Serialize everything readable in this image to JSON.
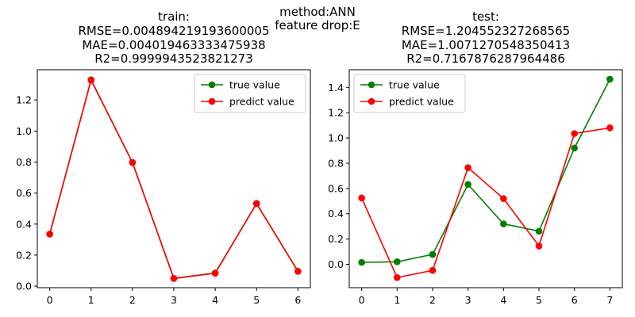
{
  "figure": {
    "suptitle_lines": [
      "method:ANN",
      "feature drop:E"
    ]
  },
  "chart_data": [
    {
      "type": "line",
      "title_lines": [
        "train:",
        "RMSE=0.004894219193600005",
        "MAE=0.004019463333475938",
        "R2=0.9999943523821273"
      ],
      "x": [
        0,
        1,
        2,
        3,
        4,
        5,
        6
      ],
      "series": [
        {
          "name": "true value",
          "color": "#008000",
          "values": [
            0.335,
            1.33,
            0.797,
            0.05,
            0.085,
            0.533,
            0.095
          ]
        },
        {
          "name": "predict value",
          "color": "#ff0000",
          "values": [
            0.336,
            1.328,
            0.797,
            0.049,
            0.083,
            0.532,
            0.096
          ]
        }
      ],
      "xlim": [
        -0.3,
        6.3
      ],
      "ylim": [
        -0.01,
        1.395
      ],
      "xticks": [
        0,
        1,
        2,
        3,
        4,
        5,
        6
      ],
      "yticks": [
        0.0,
        0.2,
        0.4,
        0.6,
        0.8,
        1.0,
        1.2
      ],
      "ytick_labels": [
        "0.0",
        "0.2",
        "0.4",
        "0.6",
        "0.8",
        "1.0",
        "1.2"
      ],
      "legend_loc": "top-right",
      "xlabel": "",
      "ylabel": ""
    },
    {
      "type": "line",
      "title_lines": [
        "test:",
        "RMSE=1.204552327268565",
        "MAE=1.0071270548350413",
        "R2=0.7167876287964486"
      ],
      "x": [
        0,
        1,
        2,
        3,
        4,
        5,
        6,
        7
      ],
      "series": [
        {
          "name": "true value",
          "color": "#008000",
          "values": [
            0.015,
            0.02,
            0.078,
            0.632,
            0.32,
            0.262,
            0.92,
            1.465
          ]
        },
        {
          "name": "predict value",
          "color": "#ff0000",
          "values": [
            0.525,
            -0.105,
            -0.048,
            0.765,
            0.52,
            0.145,
            1.035,
            1.08
          ]
        }
      ],
      "xlim": [
        -0.35,
        7.35
      ],
      "ylim": [
        -0.185,
        1.54
      ],
      "xticks": [
        0,
        1,
        2,
        3,
        4,
        5,
        6,
        7
      ],
      "yticks": [
        0.0,
        0.2,
        0.4,
        0.6,
        0.8,
        1.0,
        1.2,
        1.4
      ],
      "ytick_labels": [
        "0.0",
        "0.2",
        "0.4",
        "0.6",
        "0.8",
        "1.0",
        "1.2",
        "1.4"
      ],
      "legend_loc": "top-left",
      "xlabel": "",
      "ylabel": ""
    }
  ]
}
